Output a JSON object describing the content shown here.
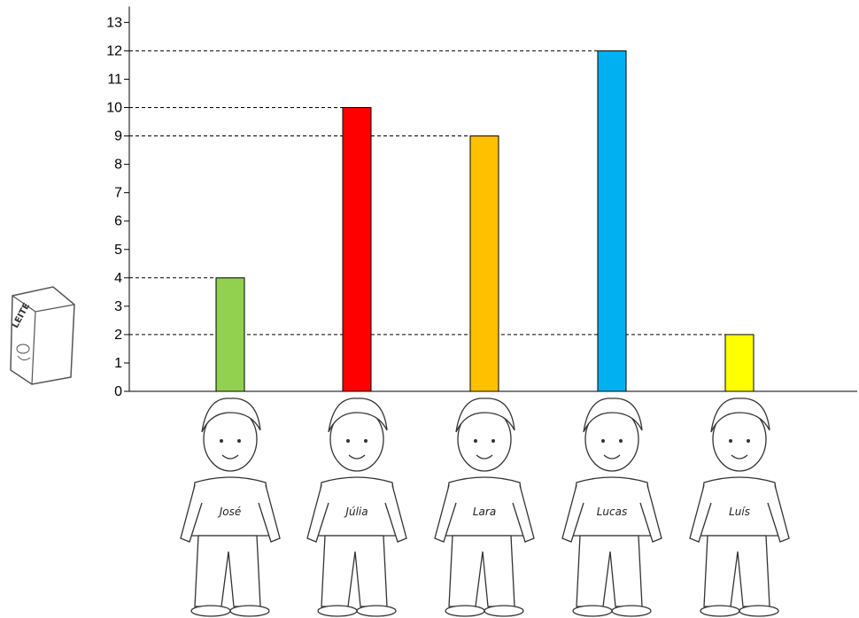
{
  "chart_data": {
    "type": "bar",
    "categories": [
      "José",
      "Júlia",
      "Lara",
      "Lucas",
      "Luís"
    ],
    "values": [
      4,
      10,
      9,
      12,
      2
    ],
    "colors": [
      "#92d050",
      "#ff0000",
      "#ffc000",
      "#00b0f0",
      "#ffff00"
    ],
    "y_ticks": [
      "0",
      "1",
      "2",
      "3",
      "4",
      "5",
      "6",
      "7",
      "8",
      "9",
      "10",
      "11",
      "12",
      "13"
    ],
    "ylim": [
      0,
      13
    ],
    "reference_lines": "dashed lines from y-axis to top of each bar",
    "grid": false
  },
  "carton": {
    "label": "LEITE",
    "icon": "milk-carton-icon"
  },
  "children": [
    {
      "name": "José",
      "icon": "boy-thumbs-up-icon"
    },
    {
      "name": "Júlia",
      "icon": "girl-ponytail-icon"
    },
    {
      "name": "Lara",
      "icon": "girl-curly-hair-icon"
    },
    {
      "name": "Lucas",
      "icon": "boy-smiling-icon"
    },
    {
      "name": "Luís",
      "icon": "boy-thumbs-up-icon"
    }
  ]
}
